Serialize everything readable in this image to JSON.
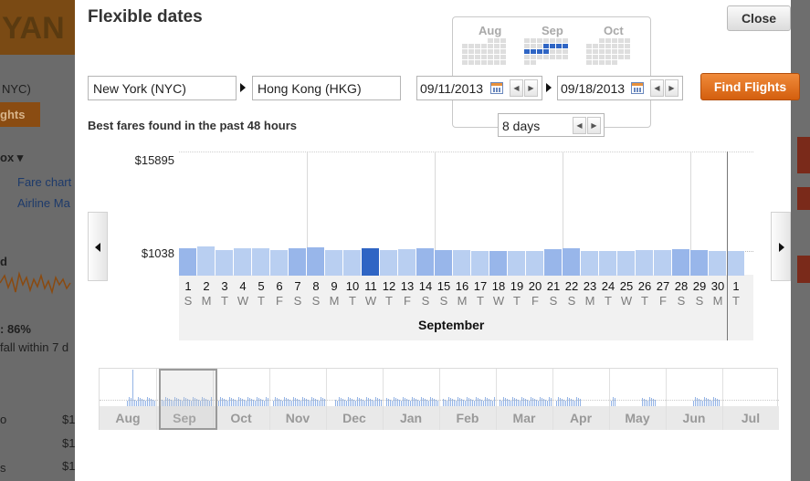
{
  "background_page": {
    "logo_letters": "YAN",
    "route_fragment": "NYC)",
    "button_fragment": "ghts",
    "menu_fragment": "ox",
    "links": [
      "Fare chart",
      "Airline Ma"
    ],
    "stat_label": "d",
    "stat_value": ": 86%",
    "stat_note": "fall within 7 d",
    "price_fragments": [
      "$1",
      "$1",
      "$1"
    ],
    "row_fragments": [
      "o",
      "s"
    ]
  },
  "modal": {
    "title": "Flexible dates",
    "close_label": "Close",
    "origin_value": "New York (NYC)",
    "destination_value": "Hong Kong (HKG)",
    "depart_date": "09/11/2013",
    "return_date": "09/18/2013",
    "trip_length": "8 days",
    "find_label": "Find Flights",
    "subtitle": "Best fares found in the past 48 hours"
  },
  "calendar_popup": {
    "months": [
      "Aug",
      "Sep",
      "Oct"
    ],
    "selected_range": "Sep 11 – Sep 18"
  },
  "colors": {
    "accent": "#e0701f",
    "bar_light": "#b9cff1",
    "bar_mid": "#98b6ea",
    "bar_selected": "#2f65c4",
    "overview_bars": "#94b4e6"
  },
  "chart_data": {
    "type": "bar",
    "title": "",
    "xlabel": "September",
    "ylabel": "",
    "y_ticks": [
      "$15895",
      "$1038"
    ],
    "ylim": [
      0,
      15895
    ],
    "selected_day": 11,
    "categories": [
      "1",
      "2",
      "3",
      "4",
      "5",
      "6",
      "7",
      "8",
      "9",
      "10",
      "11",
      "12",
      "13",
      "14",
      "15",
      "16",
      "17",
      "18",
      "19",
      "20",
      "21",
      "22",
      "23",
      "24",
      "25",
      "26",
      "27",
      "28",
      "29",
      "30",
      "1"
    ],
    "weekdays": [
      "S",
      "M",
      "T",
      "W",
      "T",
      "F",
      "S",
      "S",
      "M",
      "T",
      "W",
      "T",
      "F",
      "S",
      "S",
      "M",
      "T",
      "W",
      "T",
      "F",
      "S",
      "S",
      "M",
      "T",
      "W",
      "T",
      "F",
      "S",
      "S",
      "M",
      "T"
    ],
    "values": [
      1110,
      1150,
      1050,
      1100,
      1100,
      1050,
      1100,
      1120,
      1060,
      1050,
      1100,
      1060,
      1090,
      1100,
      1060,
      1050,
      1040,
      1040,
      1040,
      1040,
      1080,
      1100,
      1040,
      1040,
      1040,
      1050,
      1060,
      1080,
      1070,
      1040,
      1040
    ],
    "shade": [
      "mid",
      "light",
      "light",
      "light",
      "light",
      "light",
      "mid",
      "mid",
      "light",
      "light",
      "sel",
      "light",
      "light",
      "mid",
      "mid",
      "light",
      "light",
      "mid",
      "light",
      "light",
      "mid",
      "mid",
      "light",
      "light",
      "light",
      "light",
      "light",
      "mid",
      "mid",
      "light",
      "light"
    ]
  },
  "overview": {
    "months": [
      "Aug",
      "Sep",
      "Oct",
      "Nov",
      "Dec",
      "Jan",
      "Feb",
      "Mar",
      "Apr",
      "May",
      "Jun",
      "Jul"
    ],
    "selected_month": "Sep"
  }
}
